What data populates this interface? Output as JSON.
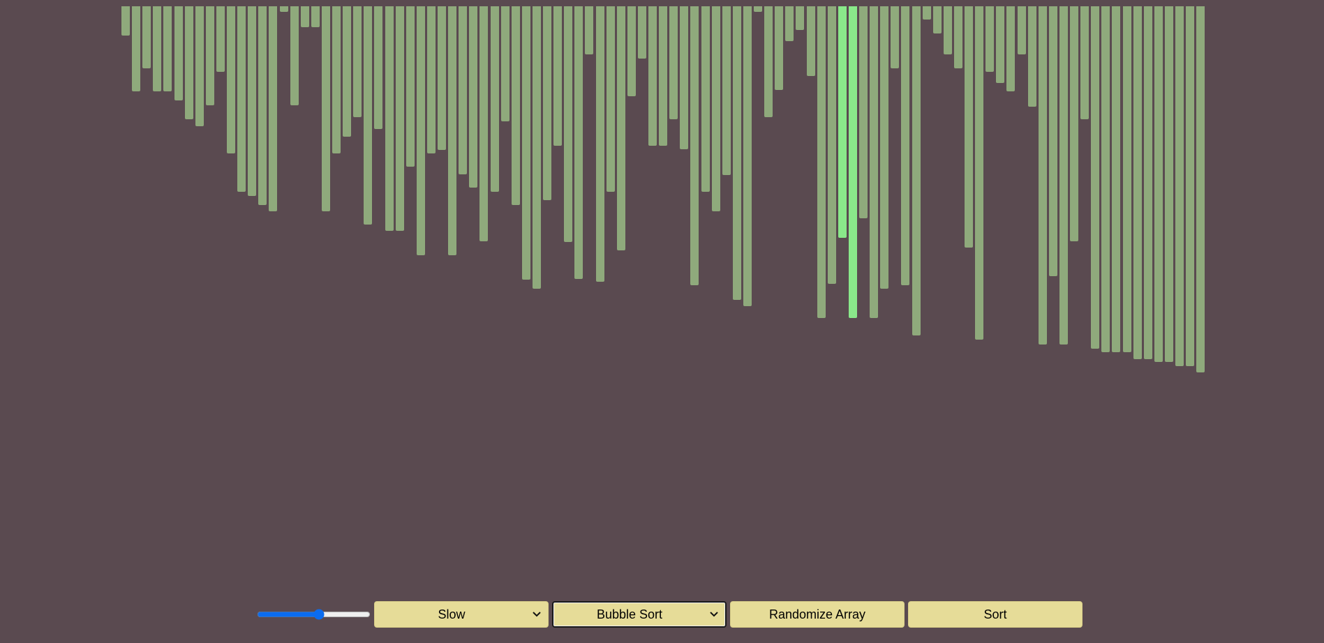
{
  "array": {
    "values": [
      40,
      115,
      84,
      115,
      115,
      127,
      153,
      162,
      134,
      89,
      199,
      251,
      257,
      269,
      277,
      8,
      134,
      28,
      28,
      277,
      199,
      176,
      150,
      295,
      166,
      304,
      304,
      217,
      337,
      199,
      194,
      337,
      227,
      245,
      318,
      251,
      156,
      269,
      370,
      382,
      262,
      189,
      319,
      369,
      65,
      373,
      251,
      330,
      122,
      71,
      189,
      189,
      153,
      193,
      377,
      251,
      277,
      228,
      397,
      406,
      8,
      150,
      113,
      47,
      32,
      94,
      422,
      375,
      313,
      422,
      287,
      422,
      382,
      84,
      377,
      445,
      18,
      37,
      65,
      84,
      326,
      451,
      89,
      104,
      115,
      65,
      136,
      458,
      365,
      458,
      318,
      153,
      463,
      468,
      468,
      468,
      477,
      477,
      481,
      481,
      487,
      487,
      495
    ],
    "highlighted_indices": [
      68,
      69
    ],
    "bar_color": "#8faa7c",
    "highlight_color": "#8ae88a"
  },
  "controls": {
    "speed_slider_value": 0.55,
    "speed_select_value": "Slow",
    "algorithm_select_value": "Bubble Sort",
    "randomize_label": "Randomize Array",
    "sort_label": "Sort"
  }
}
